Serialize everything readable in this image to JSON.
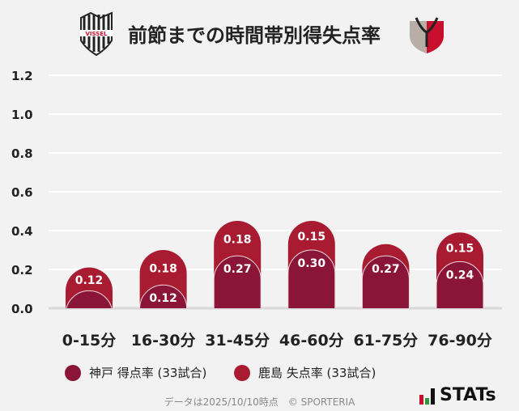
{
  "title": "前節までの時間帯別得失点率",
  "logos": {
    "left": "VISSEL",
    "right": "Antlers"
  },
  "chart_data": {
    "type": "bar",
    "stacked": true,
    "categories": [
      "0-15分",
      "16-30分",
      "31-45分",
      "46-60分",
      "61-75分",
      "76-90分"
    ],
    "series": [
      {
        "name": "神戸 得点率 (33試合)",
        "color": "#8b1538",
        "values": [
          0.09,
          0.12,
          0.27,
          0.3,
          0.27,
          0.24
        ],
        "labels": [
          "",
          "0.12",
          "0.27",
          "0.30",
          "0.27",
          "0.24"
        ]
      },
      {
        "name": "鹿島 失点率 (33試合)",
        "color": "#a91b30",
        "values": [
          0.12,
          0.18,
          0.18,
          0.15,
          0.06,
          0.15
        ],
        "labels": [
          "0.12",
          "0.18",
          "0.18",
          "0.15",
          "",
          "0.15"
        ]
      }
    ],
    "yticks": [
      "0.0",
      "0.2",
      "0.4",
      "0.6",
      "0.8",
      "1.0",
      "1.2"
    ],
    "ylim": [
      0,
      1.2
    ],
    "grid": true,
    "legend": "bottom-left"
  },
  "footer": "データは2025/10/10時点　© SPORTERIA",
  "brand": "STATs"
}
